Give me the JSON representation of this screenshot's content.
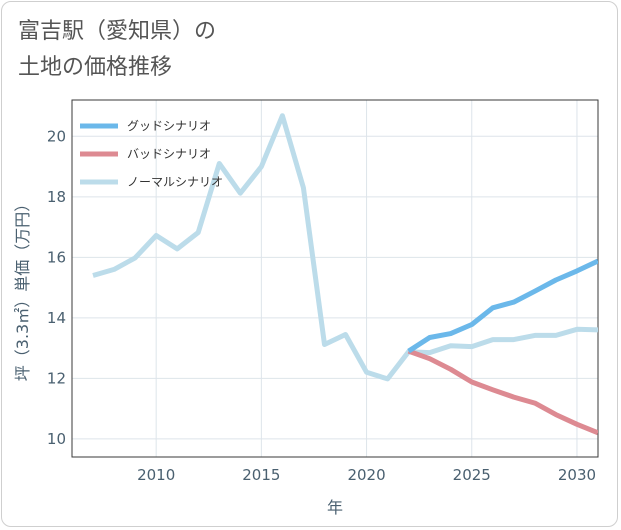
{
  "title": {
    "line1": "富吉駅（愛知県）の",
    "line2": "土地の価格推移"
  },
  "chart_data": {
    "type": "line",
    "xlabel": "年",
    "ylabel": "坪（3.3㎡）単価（万円）",
    "xlim": [
      2006,
      2031
    ],
    "ylim": [
      9.4,
      21.2
    ],
    "x_ticks": [
      2010,
      2015,
      2020,
      2025,
      2030
    ],
    "y_ticks": [
      10,
      12,
      14,
      16,
      18,
      20
    ],
    "grid": true,
    "legend_position": "top-left",
    "series": [
      {
        "name": "グッドシナリオ",
        "color": "#6bb8ea",
        "x": [
          2022,
          2023,
          2024,
          2025,
          2026,
          2027,
          2028,
          2029,
          2030,
          2031
        ],
        "y": [
          12.9,
          13.35,
          13.48,
          13.78,
          14.33,
          14.52,
          14.88,
          15.25,
          15.55,
          15.88
        ]
      },
      {
        "name": "バッドシナリオ",
        "color": "#dd8a92",
        "x": [
          2022,
          2023,
          2024,
          2025,
          2026,
          2027,
          2028,
          2029,
          2030,
          2031
        ],
        "y": [
          12.9,
          12.65,
          12.3,
          11.88,
          11.62,
          11.38,
          11.18,
          10.8,
          10.48,
          10.2
        ]
      },
      {
        "name": "ノーマルシナリオ",
        "color": "#bcdcea",
        "x": [
          2007,
          2008,
          2009,
          2010,
          2011,
          2012,
          2013,
          2014,
          2015,
          2016,
          2017,
          2018,
          2019,
          2020,
          2021,
          2022,
          2023,
          2024,
          2025,
          2026,
          2027,
          2028,
          2029,
          2030,
          2031
        ],
        "y": [
          15.4,
          15.6,
          15.98,
          16.72,
          16.28,
          16.82,
          19.1,
          18.12,
          19.0,
          20.68,
          18.3,
          13.12,
          13.45,
          12.2,
          11.98,
          12.88,
          12.85,
          13.08,
          13.05,
          13.28,
          13.28,
          13.42,
          13.42,
          13.62,
          13.6
        ]
      }
    ]
  }
}
